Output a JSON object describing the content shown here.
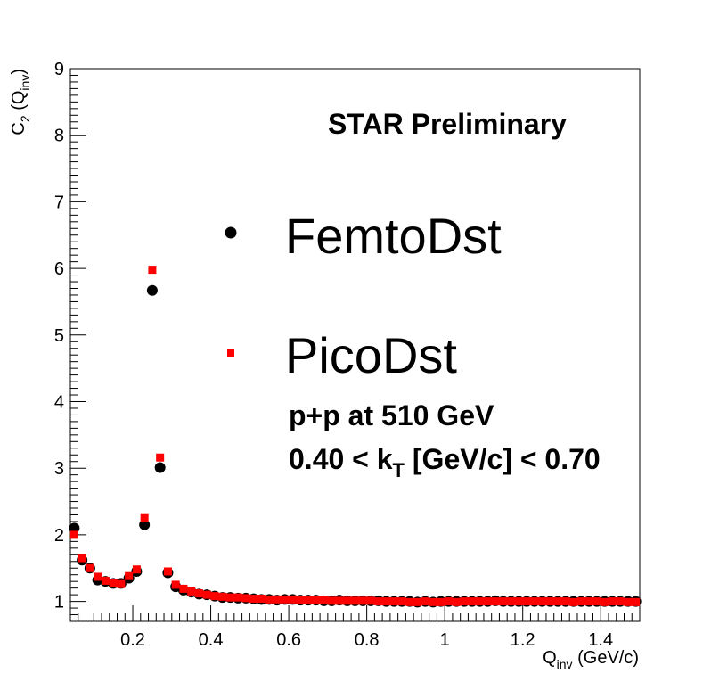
{
  "chart_data": {
    "type": "scatter",
    "annotation": "STAR Preliminary",
    "system_label": "p+p at 510 GeV",
    "kt_label": {
      "prefix": "0.40 < k",
      "sub": "T",
      "suffix": " [GeV/c] < 0.70"
    },
    "xlabel": {
      "main": "Q",
      "sub": "inv",
      "suffix": " (GeV/c)"
    },
    "ylabel": {
      "main": "C",
      "sub": "2",
      "mid": " (Q",
      "sub2": "inv",
      "suffix": ")"
    },
    "xlim": [
      0.04,
      1.5
    ],
    "ylim": [
      0.7,
      9
    ],
    "xticks": [
      {
        "v": 0.2,
        "label": "0.2"
      },
      {
        "v": 0.4,
        "label": "0.4"
      },
      {
        "v": 0.6,
        "label": "0.6"
      },
      {
        "v": 0.8,
        "label": "0.8"
      },
      {
        "v": 1.0,
        "label": "1"
      },
      {
        "v": 1.2,
        "label": "1.2"
      },
      {
        "v": 1.4,
        "label": "1.4"
      }
    ],
    "yticks": [
      {
        "v": 1,
        "label": "1"
      },
      {
        "v": 2,
        "label": "2"
      },
      {
        "v": 3,
        "label": "3"
      },
      {
        "v": 4,
        "label": "4"
      },
      {
        "v": 5,
        "label": "5"
      },
      {
        "v": 6,
        "label": "6"
      },
      {
        "v": 7,
        "label": "7"
      },
      {
        "v": 8,
        "label": "8"
      },
      {
        "v": 9,
        "label": "9"
      }
    ],
    "legend": [
      {
        "label": "FemtoDst",
        "marker": "circle",
        "color": "#000000"
      },
      {
        "label": "PicoDst",
        "marker": "square",
        "color": "#ff0000"
      }
    ],
    "legend_placement": "upper-center",
    "series": [
      {
        "name": "FemtoDst",
        "marker": "circle",
        "color": "#000000",
        "x": [
          0.05,
          0.07,
          0.09,
          0.11,
          0.13,
          0.15,
          0.17,
          0.19,
          0.21,
          0.23,
          0.25,
          0.27,
          0.29,
          0.31,
          0.33,
          0.35,
          0.37,
          0.39,
          0.41,
          0.43,
          0.45,
          0.47,
          0.49,
          0.51,
          0.53,
          0.55,
          0.57,
          0.59,
          0.61,
          0.63,
          0.65,
          0.67,
          0.69,
          0.71,
          0.73,
          0.75,
          0.77,
          0.79,
          0.81,
          0.83,
          0.85,
          0.87,
          0.89,
          0.91,
          0.93,
          0.95,
          0.97,
          0.99,
          1.01,
          1.03,
          1.05,
          1.07,
          1.09,
          1.11,
          1.13,
          1.15,
          1.17,
          1.19,
          1.21,
          1.23,
          1.25,
          1.27,
          1.29,
          1.31,
          1.33,
          1.35,
          1.37,
          1.39,
          1.41,
          1.43,
          1.45,
          1.47,
          1.49
        ],
        "y": [
          2.1,
          1.62,
          1.5,
          1.32,
          1.3,
          1.27,
          1.27,
          1.35,
          1.45,
          2.15,
          5.67,
          3.01,
          1.43,
          1.22,
          1.17,
          1.14,
          1.11,
          1.1,
          1.08,
          1.06,
          1.06,
          1.05,
          1.05,
          1.04,
          1.03,
          1.03,
          1.02,
          1.03,
          1.03,
          1.02,
          1.02,
          1.02,
          1.01,
          1.01,
          1.02,
          1.01,
          1.01,
          1.01,
          1.01,
          1.01,
          1.0,
          1.0,
          1.0,
          1.0,
          0.99,
          1.0,
          0.99,
          1.0,
          1.0,
          1.0,
          1.0,
          1.0,
          1.0,
          1.0,
          1.01,
          1.0,
          1.0,
          1.0,
          1.0,
          1.0,
          1.0,
          1.0,
          1.0,
          1.0,
          1.0,
          1.0,
          1.0,
          1.0,
          1.0,
          1.0,
          1.0,
          1.0,
          1.0
        ]
      },
      {
        "name": "PicoDst",
        "marker": "square",
        "color": "#ff0000",
        "x": [
          0.05,
          0.07,
          0.09,
          0.11,
          0.13,
          0.15,
          0.17,
          0.19,
          0.21,
          0.23,
          0.25,
          0.27,
          0.29,
          0.31,
          0.33,
          0.35,
          0.37,
          0.39,
          0.41,
          0.43,
          0.45,
          0.47,
          0.49,
          0.51,
          0.53,
          0.55,
          0.57,
          0.59,
          0.61,
          0.63,
          0.65,
          0.67,
          0.69,
          0.71,
          0.73,
          0.75,
          0.77,
          0.79,
          0.81,
          0.83,
          0.85,
          0.87,
          0.89,
          0.91,
          0.93,
          0.95,
          0.97,
          0.99,
          1.01,
          1.03,
          1.05,
          1.07,
          1.09,
          1.11,
          1.13,
          1.15,
          1.17,
          1.19,
          1.21,
          1.23,
          1.25,
          1.27,
          1.29,
          1.31,
          1.33,
          1.35,
          1.37,
          1.39,
          1.41,
          1.43,
          1.45,
          1.47,
          1.49
        ],
        "y": [
          2.0,
          1.65,
          1.5,
          1.37,
          1.31,
          1.27,
          1.26,
          1.38,
          1.48,
          2.25,
          5.98,
          3.16,
          1.45,
          1.25,
          1.19,
          1.15,
          1.12,
          1.1,
          1.08,
          1.07,
          1.06,
          1.06,
          1.05,
          1.04,
          1.04,
          1.03,
          1.03,
          1.03,
          1.03,
          1.02,
          1.02,
          1.02,
          1.02,
          1.01,
          1.01,
          1.01,
          1.01,
          1.01,
          1.01,
          1.0,
          1.0,
          1.0,
          1.0,
          0.99,
          0.99,
          1.0,
          0.99,
          0.99,
          1.0,
          0.99,
          1.0,
          1.0,
          1.0,
          1.0,
          1.0,
          1.0,
          1.0,
          1.0,
          1.0,
          1.0,
          1.0,
          1.0,
          1.0,
          1.0,
          0.99,
          1.0,
          1.0,
          1.0,
          0.99,
          1.0,
          1.0,
          0.99,
          0.99
        ]
      }
    ]
  }
}
